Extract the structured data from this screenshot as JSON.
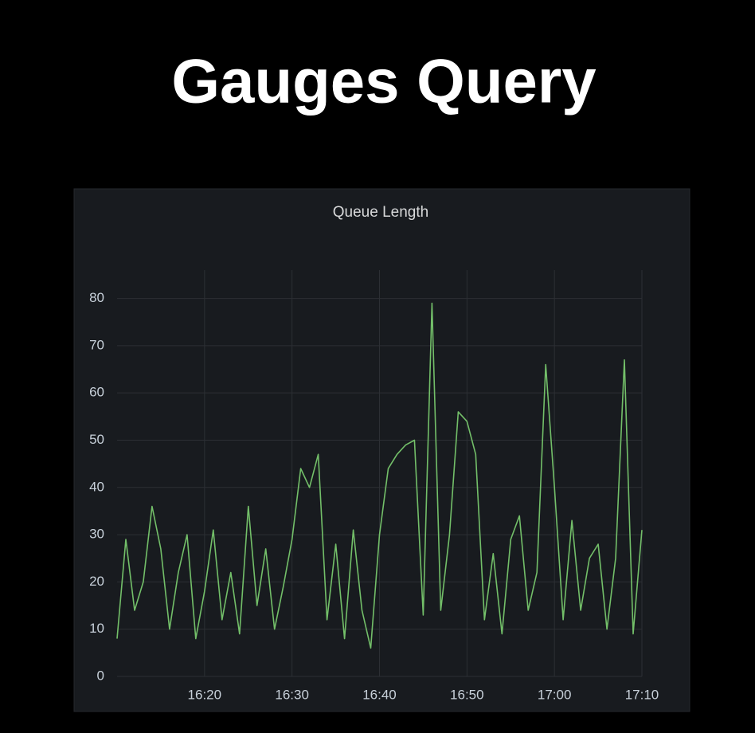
{
  "slide_title": "Gauges Query",
  "chart_data": {
    "type": "line",
    "title": "Queue Length",
    "x": [
      "16:10",
      "16:11",
      "16:12",
      "16:13",
      "16:14",
      "16:15",
      "16:16",
      "16:17",
      "16:18",
      "16:19",
      "16:20",
      "16:21",
      "16:22",
      "16:23",
      "16:24",
      "16:25",
      "16:26",
      "16:27",
      "16:28",
      "16:29",
      "16:30",
      "16:31",
      "16:32",
      "16:33",
      "16:34",
      "16:35",
      "16:36",
      "16:37",
      "16:38",
      "16:39",
      "16:40",
      "16:41",
      "16:42",
      "16:43",
      "16:44",
      "16:45",
      "16:46",
      "16:47",
      "16:48",
      "16:49",
      "16:50",
      "16:51",
      "16:52",
      "16:53",
      "16:54",
      "16:55",
      "16:56",
      "16:57",
      "16:58",
      "16:59",
      "17:00",
      "17:01",
      "17:02",
      "17:03",
      "17:04",
      "17:05",
      "17:06",
      "17:07",
      "17:08",
      "17:09",
      "17:10"
    ],
    "values": [
      8,
      29,
      14,
      20,
      36,
      27,
      10,
      22,
      30,
      8,
      18,
      31,
      12,
      22,
      9,
      36,
      15,
      27,
      10,
      19,
      29,
      44,
      40,
      47,
      12,
      28,
      8,
      31,
      14,
      6,
      30,
      44,
      47,
      49,
      50,
      13,
      79,
      14,
      30,
      56,
      54,
      47,
      12,
      26,
      9,
      29,
      34,
      14,
      22,
      66,
      40,
      12,
      33,
      14,
      25,
      28,
      10,
      25,
      67,
      9,
      31
    ],
    "color": "#73bf69",
    "xticks": [
      "16:20",
      "16:30",
      "16:40",
      "16:50",
      "17:00",
      "17:10"
    ],
    "ylim": [
      0,
      86
    ],
    "yticks": [
      0,
      10,
      20,
      30,
      40,
      50,
      60,
      70,
      80
    ],
    "grid": true
  }
}
